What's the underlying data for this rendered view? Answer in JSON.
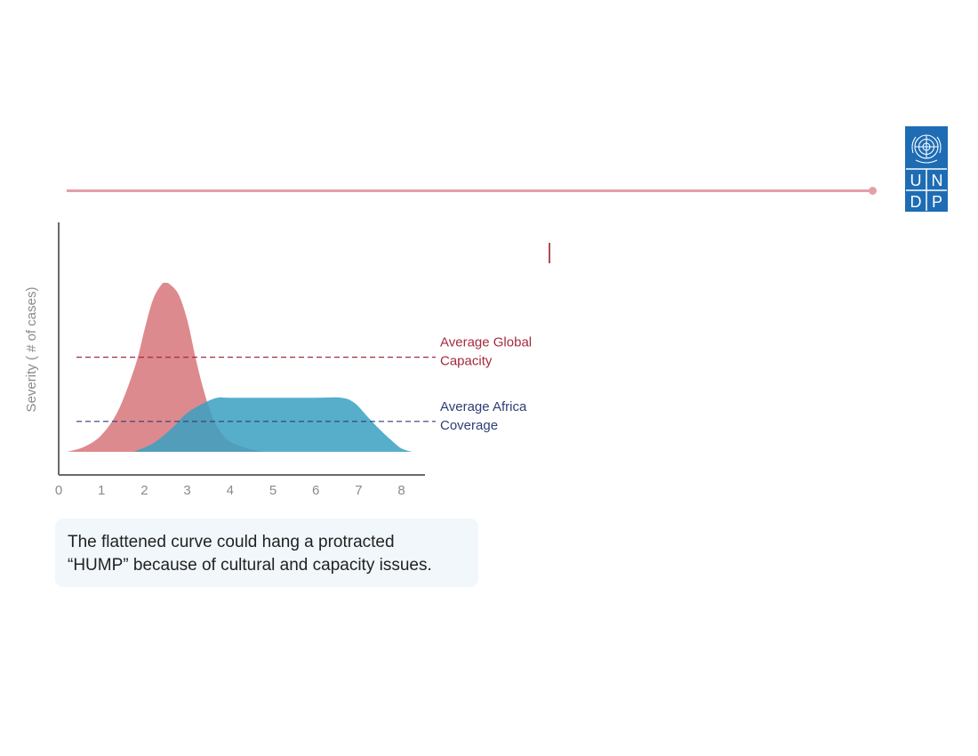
{
  "logo": {
    "letters": [
      "U",
      "N",
      "D",
      "P"
    ],
    "color": "#1d6cb4"
  },
  "colors": {
    "rule": "#e3a0a6",
    "peak": "#dd8a8e",
    "flat": "#3ba1c1",
    "global": "#a52a3e",
    "africa": "#2e3d78"
  },
  "chart_data": {
    "type": "area",
    "xlabel": "",
    "ylabel": "Severity ( # of cases)",
    "xlim": [
      0,
      8.6
    ],
    "ylim": [
      0,
      1
    ],
    "xticks": [
      "0",
      "1",
      "2",
      "3",
      "4",
      "5",
      "6",
      "7",
      "8"
    ],
    "series": [
      {
        "key": "peak",
        "x": [
          0.2,
          0.6,
          1.0,
          1.4,
          1.8,
          2.0,
          2.2,
          2.4,
          2.5,
          2.6,
          2.8,
          3.0,
          3.2,
          3.4,
          3.6,
          3.8,
          4.0,
          4.4,
          4.8
        ],
        "y": [
          0.0,
          0.03,
          0.1,
          0.25,
          0.52,
          0.72,
          0.9,
          0.99,
          1.0,
          0.99,
          0.93,
          0.78,
          0.55,
          0.35,
          0.2,
          0.11,
          0.06,
          0.02,
          0.0
        ]
      },
      {
        "key": "flat",
        "x": [
          1.75,
          2.2,
          2.6,
          3.0,
          3.4,
          3.7,
          4.0,
          5.0,
          6.0,
          6.6,
          6.9,
          7.2,
          7.5,
          7.8,
          8.0,
          8.25
        ],
        "y": [
          0.0,
          0.05,
          0.13,
          0.23,
          0.29,
          0.32,
          0.32,
          0.32,
          0.32,
          0.32,
          0.29,
          0.21,
          0.13,
          0.06,
          0.02,
          0.0
        ]
      }
    ],
    "reference_lines": [
      {
        "key": "global",
        "y": 0.56,
        "label_lines": [
          "Average Global",
          "Capacity"
        ]
      },
      {
        "key": "africa",
        "y": 0.18,
        "label_lines": [
          "Average Africa",
          "Coverage"
        ]
      }
    ]
  },
  "caption": {
    "line1": "The flattened curve could hang a protracted",
    "line2": "“HUMP” because of cultural and capacity issues."
  }
}
